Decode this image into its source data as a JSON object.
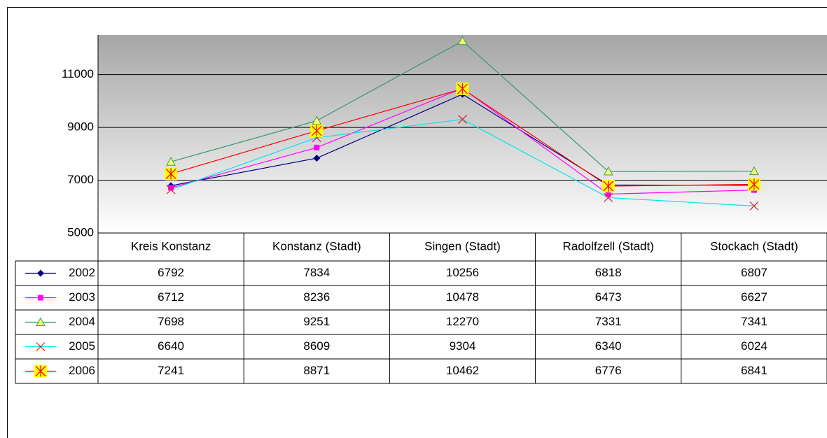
{
  "chart_data": {
    "type": "line",
    "categories": [
      "Kreis Konstanz",
      "Konstanz (Stadt)",
      "Singen (Stadt)",
      "Radolfzell (Stadt)",
      "Stockach (Stadt)"
    ],
    "series": [
      {
        "name": "2002",
        "color": "#000080",
        "marker": "diamond",
        "values": [
          6792,
          7834,
          10256,
          6818,
          6807
        ]
      },
      {
        "name": "2003",
        "color": "#ff00ff",
        "marker": "square",
        "values": [
          6712,
          8236,
          10478,
          6473,
          6627
        ]
      },
      {
        "name": "2004",
        "color": "#339966",
        "marker": "triangle",
        "values": [
          7698,
          9251,
          12270,
          7331,
          7341
        ]
      },
      {
        "name": "2005",
        "color": "#00e5ee",
        "marker": "cross",
        "values": [
          6640,
          8609,
          9304,
          6340,
          6024
        ]
      },
      {
        "name": "2006",
        "color": "#ff0000",
        "marker": "star-square",
        "values": [
          7241,
          8871,
          10462,
          6776,
          6841
        ]
      }
    ],
    "ylim": [
      5000,
      12500
    ],
    "yticks": [
      5000,
      7000,
      9000,
      11000
    ],
    "grid": true,
    "data_table": true
  }
}
